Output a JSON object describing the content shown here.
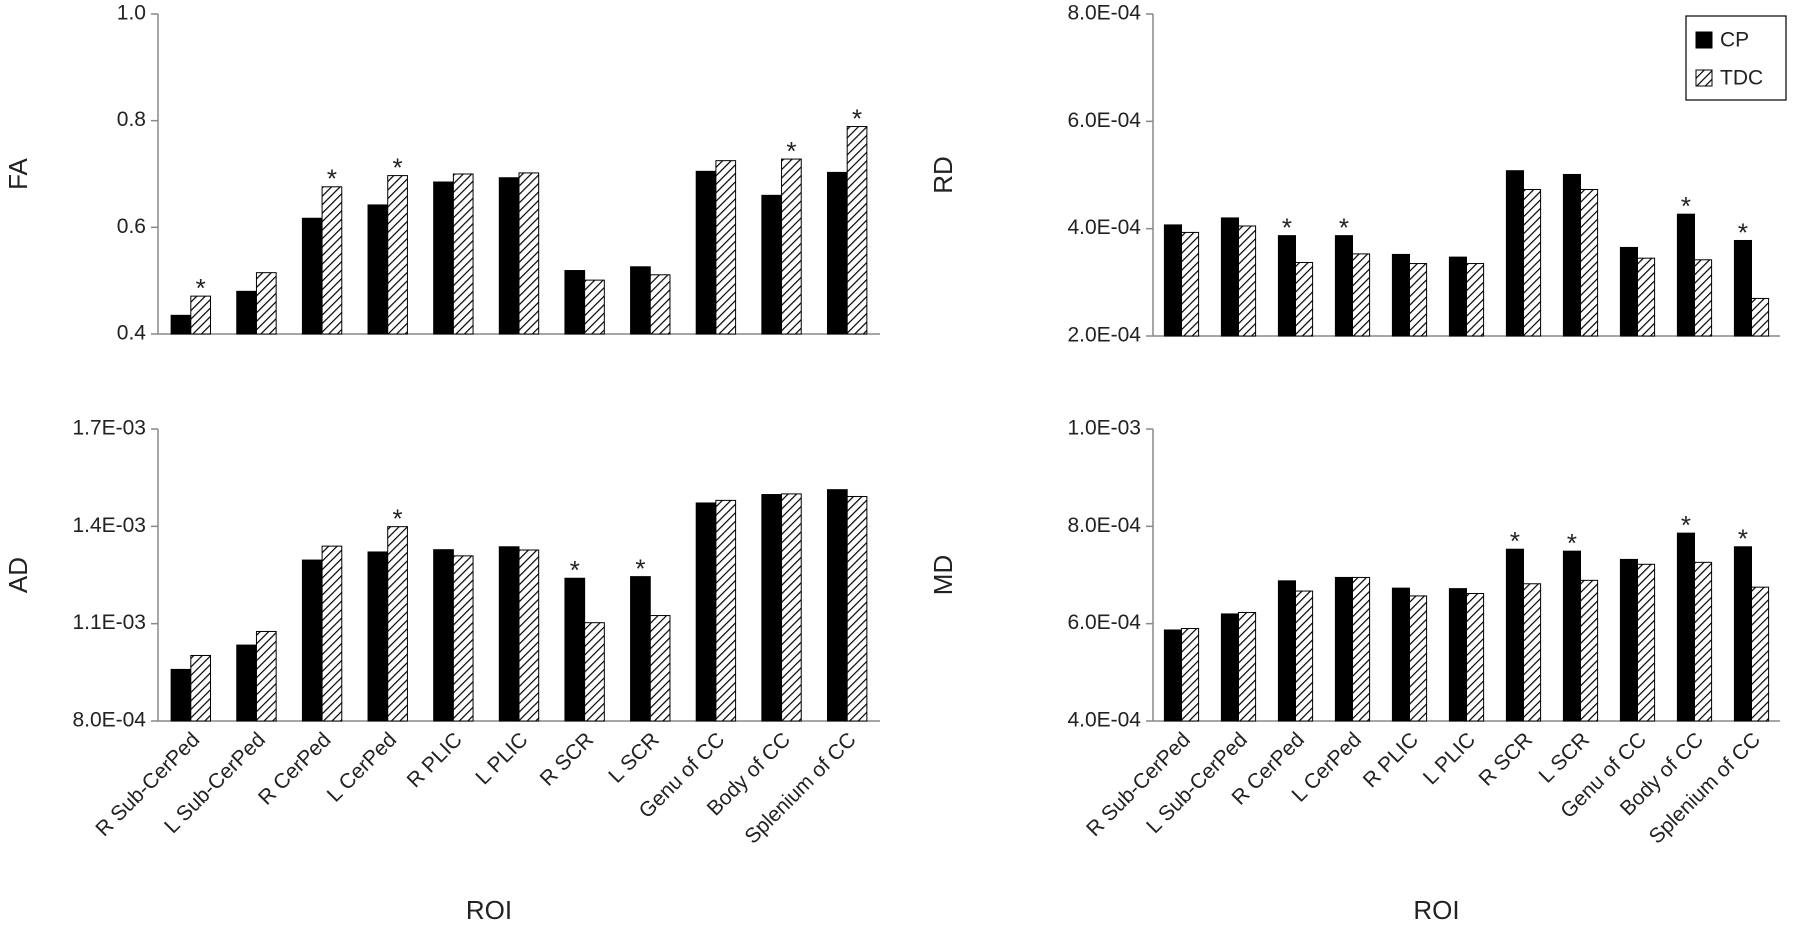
{
  "chart_data": [
    {
      "type": "bar",
      "ylabel": "FA",
      "ylim": [
        0.4,
        1
      ],
      "yticks": [
        0.4,
        0.6,
        0.8,
        {
          "value": 1,
          "label": "1.0"
        }
      ],
      "series": [
        {
          "color": "#000000",
          "hatch": false,
          "values": [
            0.435,
            0.48,
            0.617,
            0.642,
            0.685,
            0.693,
            0.519,
            0.526,
            0.705,
            0.66,
            0.703
          ]
        },
        {
          "color": "#000000",
          "hatch": true,
          "values": [
            0.471,
            0.515,
            0.676,
            0.697,
            0.7,
            0.702,
            0.501,
            0.511,
            0.725,
            0.728,
            0.789
          ]
        }
      ],
      "significance": [
        "*",
        null,
        "*",
        "*",
        null,
        null,
        null,
        null,
        null,
        "*",
        "*"
      ]
    },
    {
      "type": "bar",
      "ylabel": "RD",
      "ylim": [
        0.0002,
        0.0008
      ],
      "yticks": [
        {
          "value": 0.0002,
          "label": "2.0E-04"
        },
        {
          "value": 0.0004,
          "label": "4.0E-04"
        },
        {
          "value": 0.0006,
          "label": "6.0E-04"
        },
        {
          "value": 0.0008,
          "label": "8.0E-04"
        }
      ],
      "legend": "upper right",
      "series": [
        {
          "name": "CP",
          "color": "#000000",
          "hatch": false,
          "values": [
            0.000407,
            0.00042,
            0.000387,
            0.000387,
            0.000352,
            0.000347,
            0.000508,
            0.000501,
            0.000365,
            0.000427,
            0.000378
          ]
        },
        {
          "name": "TDC",
          "color": "#000000",
          "hatch": true,
          "values": [
            0.000393,
            0.000405,
            0.000337,
            0.000353,
            0.000335,
            0.000335,
            0.000473,
            0.000473,
            0.000345,
            0.000342,
            0.00027
          ]
        }
      ],
      "significance": [
        null,
        null,
        "*",
        "*",
        null,
        null,
        null,
        null,
        null,
        "*",
        "*"
      ]
    },
    {
      "type": "bar",
      "ylabel": "AD",
      "xlabel": "ROI",
      "categories": [
        "R Sub-CerPed",
        "L Sub-CerPed",
        "R CerPed",
        "L CerPed",
        "R PLIC",
        "L PLIC",
        "R SCR",
        "L SCR",
        "Genu of CC",
        "Body of CC",
        "Splenium of CC"
      ],
      "ylim": [
        0.0008,
        0.0017
      ],
      "yticks": [
        {
          "value": 0.0008,
          "label": "8.0E-04"
        },
        {
          "value": 0.0011,
          "label": "1.1E-03"
        },
        {
          "value": 0.0014,
          "label": "1.4E-03"
        },
        {
          "value": 0.0017,
          "label": "1.7E-03"
        }
      ],
      "series": [
        {
          "color": "#000000",
          "hatch": false,
          "values": [
            0.000959,
            0.001034,
            0.001296,
            0.001321,
            0.001328,
            0.001337,
            0.00124,
            0.001245,
            0.001472,
            0.001498,
            0.001513
          ]
        },
        {
          "color": "#000000",
          "hatch": true,
          "values": [
            0.001002,
            0.001076,
            0.001339,
            0.001399,
            0.001309,
            0.001327,
            0.001103,
            0.001125,
            0.00148,
            0.0015,
            0.001492
          ]
        }
      ],
      "significance": [
        null,
        null,
        null,
        "*",
        null,
        null,
        "*",
        "*",
        null,
        null,
        null
      ]
    },
    {
      "type": "bar",
      "ylabel": "MD",
      "xlabel": "ROI",
      "categories": [
        "R Sub-CerPed",
        "L Sub-CerPed",
        "R CerPed",
        "L CerPed",
        "R PLIC",
        "L PLIC",
        "R SCR",
        "L SCR",
        "Genu of CC",
        "Body of CC",
        "Splenium of CC"
      ],
      "ylim": [
        0.0004,
        0.001
      ],
      "yticks": [
        {
          "value": 0.0004,
          "label": "4.0E-04"
        },
        {
          "value": 0.0006,
          "label": "6.0E-04"
        },
        {
          "value": 0.0008,
          "label": "8.0E-04"
        },
        {
          "value": 0.001,
          "label": "1.0E-03"
        }
      ],
      "series": [
        {
          "color": "#000000",
          "hatch": false,
          "values": [
            0.000587,
            0.00062,
            0.000688,
            0.000695,
            0.000673,
            0.000672,
            0.000753,
            0.000749,
            0.000732,
            0.000786,
            0.000758
          ]
        },
        {
          "color": "#000000",
          "hatch": true,
          "values": [
            0.00059,
            0.000623,
            0.000667,
            0.000695,
            0.000657,
            0.000662,
            0.000682,
            0.000689,
            0.000722,
            0.000726,
            0.000675
          ]
        }
      ],
      "significance": [
        null,
        null,
        null,
        null,
        null,
        null,
        "*",
        "*",
        null,
        "*",
        "*"
      ]
    }
  ]
}
